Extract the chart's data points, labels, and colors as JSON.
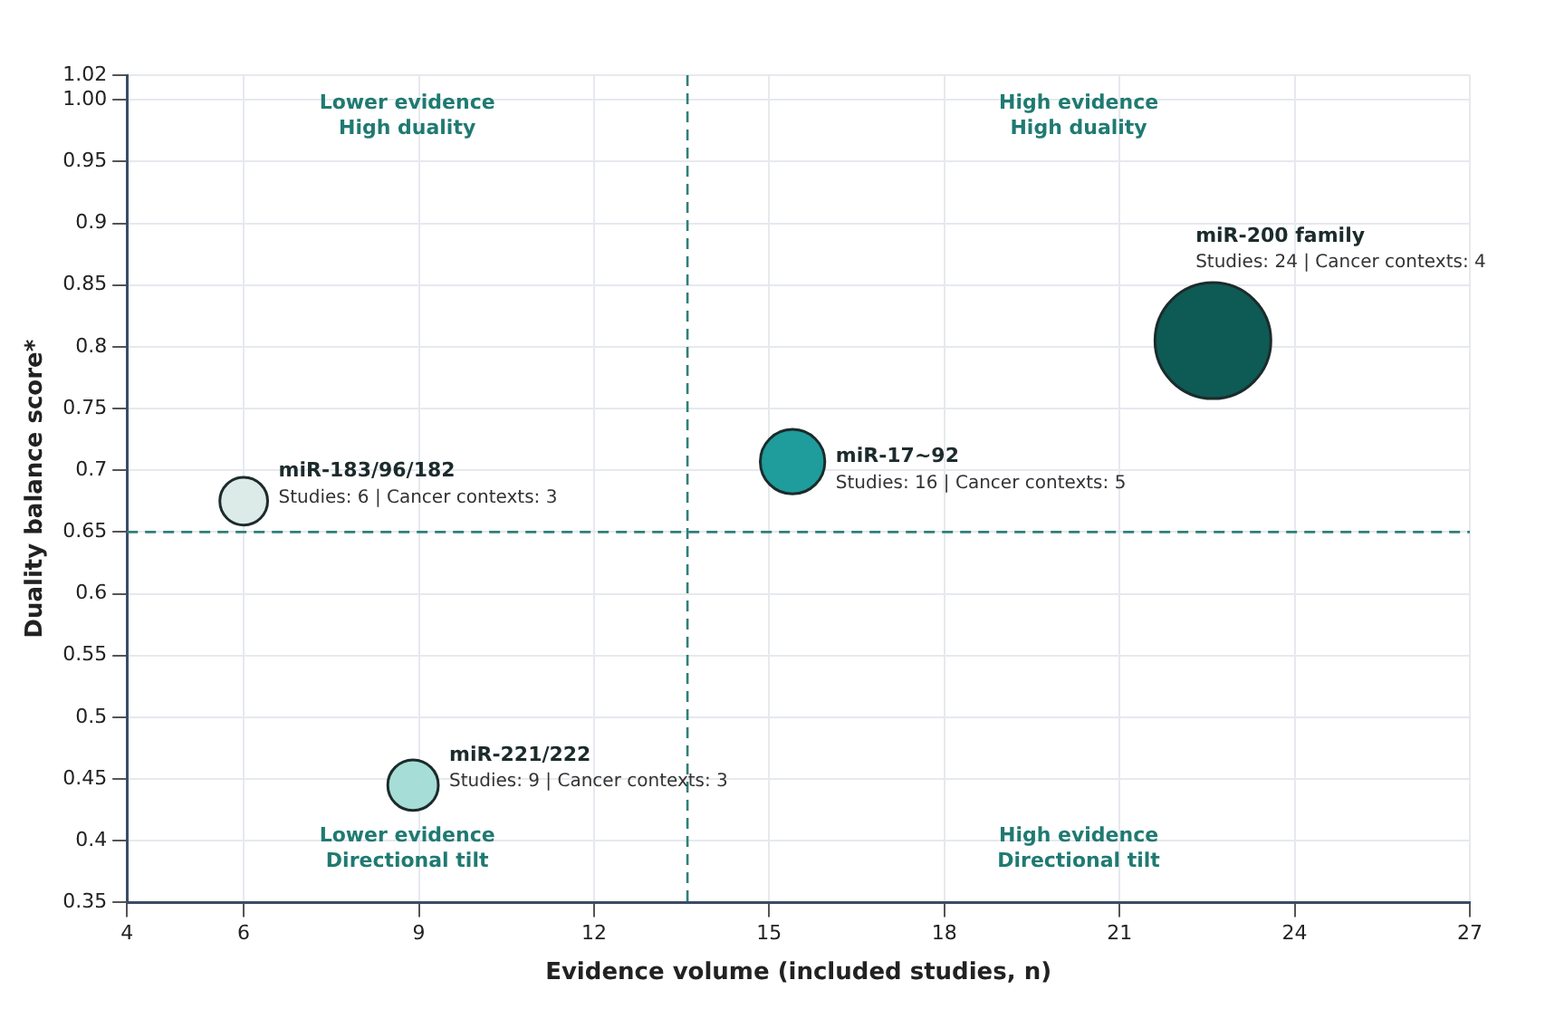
{
  "chart_data": {
    "type": "bubble",
    "xlabel": "Evidence volume (included studies, n)",
    "ylabel": "Duality balance score*",
    "xlim": [
      4,
      27
    ],
    "xticks": [
      4,
      6,
      9,
      12,
      15,
      18,
      21,
      24,
      27
    ],
    "ylim": [
      0.35,
      1.02
    ],
    "yticks": [
      0.35,
      0.4,
      0.45,
      0.5,
      0.55,
      0.6,
      0.65,
      0.7,
      0.75,
      0.8,
      0.85,
      0.9,
      0.95,
      {
        "value": 1.0,
        "label": "1.00"
      },
      1.02
    ],
    "grid": true,
    "legend": false,
    "series": [
      {
        "name": "miR-200 family",
        "color": "#0e5a55",
        "x": [
          22.6
        ],
        "values": [
          0.805
        ],
        "sizes": [
          1
        ]
      },
      {
        "name": "miR-17~92",
        "color": "#1f9c9c",
        "x": [
          15.4
        ],
        "values": [
          0.707
        ],
        "sizes": [
          0.31
        ]
      },
      {
        "name": "miR-183/96/182",
        "color": "#dceae8",
        "x": [
          6.0
        ],
        "values": [
          0.675
        ],
        "sizes": [
          0.17
        ]
      },
      {
        "name": "miR-221/222",
        "color": "#a6ddd6",
        "x": [
          8.9
        ],
        "values": [
          0.445
        ],
        "sizes": [
          0.19
        ]
      }
    ],
    "ref_lines": [
      {
        "axis": "x",
        "value": 13.6,
        "color": "#2f7f7a",
        "line_style": "dashed"
      },
      {
        "axis": "y",
        "value": 0.65,
        "color": "#2f7f7a",
        "line_style": "dashed"
      }
    ],
    "annotations": [
      "Lower evidence\nHigh duality",
      "High evidence\nHigh duality",
      "Lower evidence\nDirectional tilt",
      "High evidence\nDirectional tilt",
      "Studies: 24 | Cancer contexts: 4",
      "Studies: 16 | Cancer contexts: 5",
      "Studies: 6 | Cancer contexts: 3",
      "Studies: 9 | Cancer contexts: 3"
    ]
  }
}
